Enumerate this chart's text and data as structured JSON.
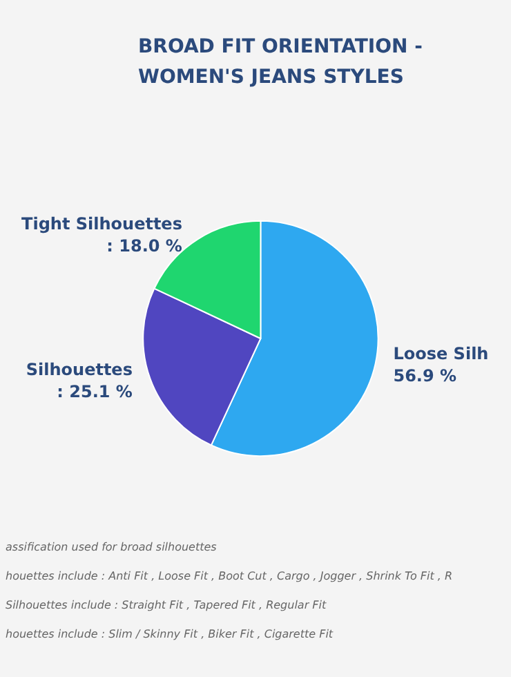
{
  "chart_data": {
    "type": "pie",
    "title": "BROAD FIT ORIENTATION -\nWOMEN'S JEANS STYLES",
    "categories": [
      "Loose Silh",
      "Silhouettes",
      "Tight Silhouettes"
    ],
    "values": [
      56.9,
      25.1,
      18.0
    ],
    "colors": [
      "#2ea8f0",
      "#5046c0",
      "#1fd66f"
    ],
    "value_labels": [
      "56.9 %",
      ": 25.1 %",
      ": 18.0 %"
    ],
    "annotations": [
      "assification used for broad silhouettes",
      "houettes include : Anti Fit , Loose Fit , Boot Cut , Cargo , Jogger , Shrink To Fit , R",
      "Silhouettes include : Straight Fit , Tapered Fit , Regular Fit",
      "houettes include : Slim / Skinny Fit , Biker Fit , Cigarette Fit"
    ]
  }
}
